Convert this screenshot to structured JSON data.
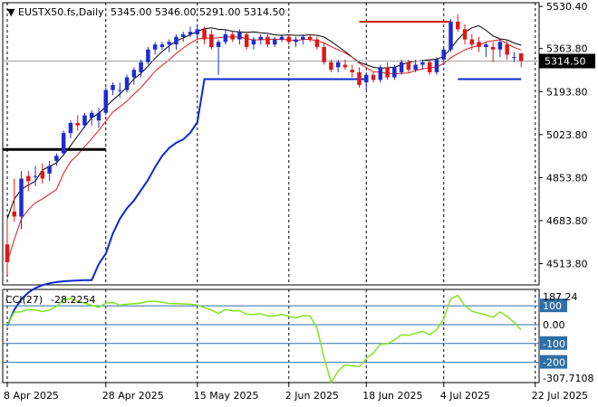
{
  "chart_data": [
    {
      "type": "candlestick",
      "title": "EUSTX50.fs,Daily",
      "ohlc_header": "5345.00 5346.00 5291.00 5314.50",
      "last_price": 5314.5,
      "last_price_label": "5314.50",
      "ylim": [
        4430,
        5545
      ],
      "y_ticks": [
        5530.4,
        5363.8,
        5193.8,
        5023.8,
        4853.8,
        4683.8,
        4513.8
      ],
      "y_tick_labels": [
        "5530.40",
        "5363.80",
        "5193.80",
        "5023.80",
        "4853.80",
        "4683.80",
        "4513.80"
      ],
      "x_tick_labels": [
        "8 Apr 2025",
        "28 Apr 2025",
        "15 May 2025",
        "2 Jun 2025",
        "18 Jun 2025",
        "4 Jul 2025",
        "22 Jul 2025"
      ],
      "x_tick_bars": [
        0,
        14,
        27,
        40,
        51,
        62,
        75
      ],
      "candles": [
        [
          4590,
          4690,
          4470,
          4520
        ],
        [
          4720,
          4850,
          4680,
          4700
        ],
        [
          4700,
          4880,
          4650,
          4850
        ],
        [
          4860,
          4880,
          4800,
          4840
        ],
        [
          4860,
          4900,
          4820,
          4860
        ],
        [
          4880,
          4910,
          4830,
          4850
        ],
        [
          4870,
          4920,
          4840,
          4900
        ],
        [
          4920,
          4950,
          4900,
          4940
        ],
        [
          4950,
          5040,
          4940,
          5030
        ],
        [
          5030,
          5080,
          5010,
          5070
        ],
        [
          5070,
          5100,
          5040,
          5060
        ],
        [
          5060,
          5110,
          5050,
          5100
        ],
        [
          5090,
          5120,
          5060,
          5110
        ],
        [
          5080,
          5130,
          5050,
          5110
        ],
        [
          5110,
          5210,
          5100,
          5200
        ],
        [
          5200,
          5230,
          5180,
          5220
        ],
        [
          5200,
          5230,
          5170,
          5200
        ],
        [
          5200,
          5260,
          5190,
          5250
        ],
        [
          5250,
          5290,
          5220,
          5280
        ],
        [
          5270,
          5320,
          5250,
          5310
        ],
        [
          5310,
          5370,
          5300,
          5360
        ],
        [
          5360,
          5390,
          5340,
          5380
        ],
        [
          5370,
          5390,
          5360,
          5380
        ],
        [
          5380,
          5400,
          5350,
          5390
        ],
        [
          5380,
          5420,
          5360,
          5410
        ],
        [
          5410,
          5430,
          5390,
          5420
        ],
        [
          5420,
          5450,
          5410,
          5430
        ],
        [
          5420,
          5460,
          5400,
          5440
        ],
        [
          5440,
          5450,
          5380,
          5400
        ],
        [
          5420,
          5440,
          5360,
          5370
        ],
        [
          5370,
          5400,
          5260,
          5390
        ],
        [
          5390,
          5440,
          5380,
          5420
        ],
        [
          5420,
          5430,
          5390,
          5400
        ],
        [
          5400,
          5440,
          5380,
          5430
        ],
        [
          5420,
          5430,
          5360,
          5370
        ],
        [
          5380,
          5410,
          5360,
          5400
        ],
        [
          5400,
          5420,
          5380,
          5410
        ],
        [
          5410,
          5420,
          5370,
          5380
        ],
        [
          5380,
          5410,
          5370,
          5400
        ],
        [
          5400,
          5420,
          5390,
          5410
        ],
        [
          5410,
          5420,
          5380,
          5390
        ],
        [
          5390,
          5410,
          5370,
          5400
        ],
        [
          5400,
          5420,
          5380,
          5410
        ],
        [
          5410,
          5420,
          5390,
          5400
        ],
        [
          5400,
          5410,
          5360,
          5370
        ],
        [
          5370,
          5390,
          5300,
          5310
        ],
        [
          5310,
          5320,
          5270,
          5280
        ],
        [
          5290,
          5320,
          5270,
          5310
        ],
        [
          5300,
          5320,
          5280,
          5290
        ],
        [
          5280,
          5300,
          5250,
          5270
        ],
        [
          5270,
          5290,
          5210,
          5220
        ],
        [
          5230,
          5270,
          5200,
          5260
        ],
        [
          5260,
          5270,
          5230,
          5240
        ],
        [
          5240,
          5300,
          5230,
          5290
        ],
        [
          5290,
          5310,
          5240,
          5250
        ],
        [
          5250,
          5300,
          5240,
          5290
        ],
        [
          5270,
          5320,
          5260,
          5310
        ],
        [
          5310,
          5320,
          5270,
          5280
        ],
        [
          5280,
          5320,
          5270,
          5300
        ],
        [
          5300,
          5320,
          5280,
          5310
        ],
        [
          5310,
          5320,
          5260,
          5270
        ],
        [
          5270,
          5330,
          5260,
          5320
        ],
        [
          5320,
          5370,
          5310,
          5360
        ],
        [
          5360,
          5480,
          5350,
          5470
        ],
        [
          5470,
          5500,
          5430,
          5440
        ],
        [
          5440,
          5460,
          5380,
          5400
        ],
        [
          5400,
          5420,
          5360,
          5380
        ],
        [
          5390,
          5410,
          5350,
          5370
        ],
        [
          5370,
          5390,
          5330,
          5380
        ],
        [
          5370,
          5390,
          5310,
          5360
        ],
        [
          5360,
          5400,
          5330,
          5390
        ],
        [
          5380,
          5400,
          5320,
          5340
        ],
        [
          5330,
          5350,
          5310,
          5330
        ],
        [
          5345,
          5346,
          5291,
          5314.5
        ]
      ],
      "cci_period": 27,
      "cci_label": "CCI(27)",
      "cci_value_label": "-28.2254",
      "cci_ylim": [
        -307.7108,
        187.24
      ],
      "cci_levels": [
        100,
        0,
        -100,
        -200
      ],
      "cci_level_labels": [
        "100",
        "0.00",
        "-100",
        "-200"
      ],
      "cci_max_label": "187.24",
      "cci_min_label": "-307.7108",
      "cci_ticks": [
        187.24,
        100,
        0,
        -100,
        -200,
        -307.7108
      ],
      "colors": {
        "bull": "#1f2bd0",
        "bear": "#e01818",
        "ma_black": "#000000",
        "ma_red": "#e01818",
        "stop_blue": "#0a2ad0",
        "cci": "#7fe620",
        "level_line": "#2f6fa8",
        "level_box": "#2f6fa8",
        "price_box_bg": "#000000",
        "grid": "#000000"
      }
    }
  ]
}
